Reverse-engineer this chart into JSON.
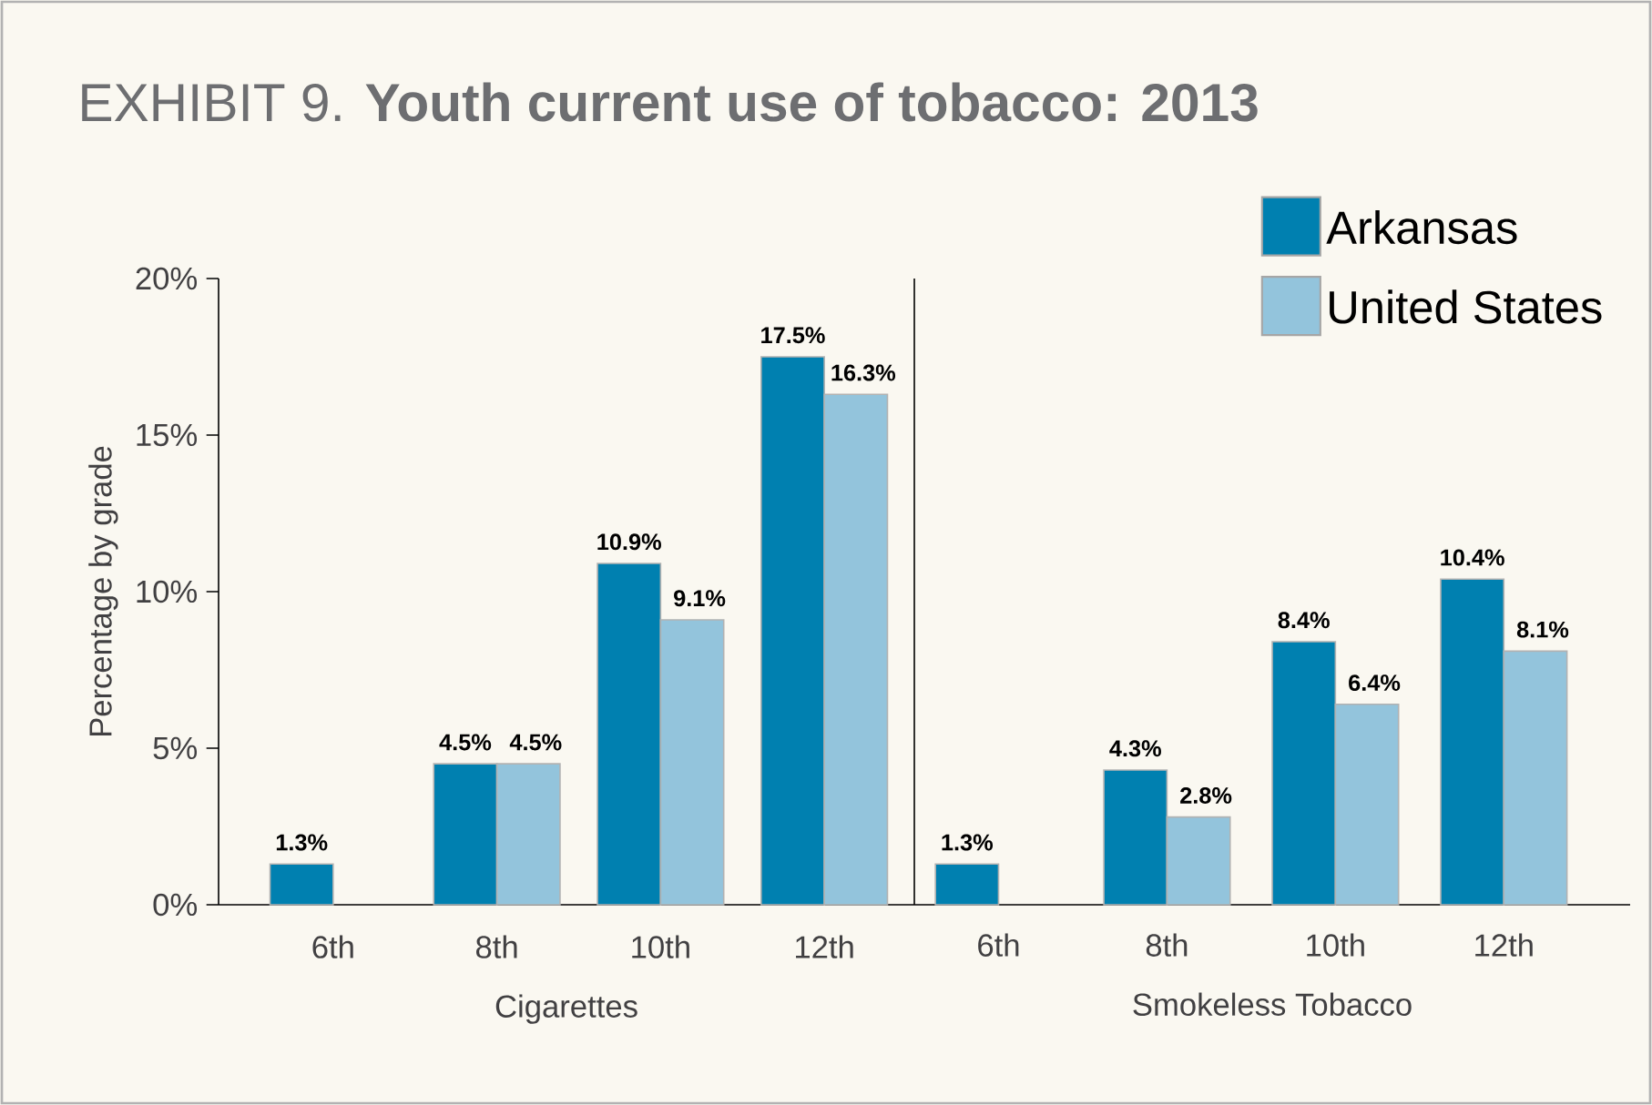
{
  "chart_data": [
    {
      "type": "bar",
      "title": "EXHIBIT 9.  **Youth current use of tobacco: 2013**",
      "ylabel": "Percentage by grade",
      "xlabel": "Cigarettes",
      "categories": [
        "6th",
        "8th",
        "10th",
        "12th"
      ],
      "series": [
        {
          "color": "#0080b0",
          "values": [
            1.3,
            4.5,
            10.9,
            17.5
          ],
          "value_labels": [
            "1.3%",
            "4.5%",
            "10.9%",
            "17.5%"
          ]
        },
        {
          "color": "#93c4dc",
          "values": [
            null,
            4.5,
            9.1,
            16.3
          ],
          "value_labels": [
            null,
            "4.5%",
            "9.1%",
            "16.3%"
          ]
        }
      ],
      "ylim": [
        0,
        20
      ],
      "yticks": [
        {
          "value": 0,
          "label": "0%"
        },
        {
          "value": 5,
          "label": "5%"
        },
        {
          "value": 10,
          "label": "10%"
        },
        {
          "value": 15,
          "label": "15%"
        },
        {
          "value": 20,
          "label": "20%"
        }
      ]
    },
    {
      "type": "bar",
      "xlabel": "Smokeless Tobacco",
      "categories": [
        "6th",
        "8th",
        "10th",
        "12th"
      ],
      "series": [
        {
          "name": "Arkansas",
          "color": "#0080b0",
          "values": [
            1.3,
            4.3,
            8.4,
            10.4
          ],
          "value_labels": [
            "1.3%",
            "4.3%",
            "8.4%",
            "10.4%"
          ]
        },
        {
          "name": "United States",
          "color": "#93c4dc",
          "values": [
            null,
            2.8,
            6.4,
            8.1
          ],
          "value_labels": [
            null,
            "2.8%",
            "6.4%",
            "8.1%"
          ]
        }
      ],
      "ylim": [
        0,
        20
      ],
      "tick_labels": "x",
      "legend": "top right"
    }
  ]
}
